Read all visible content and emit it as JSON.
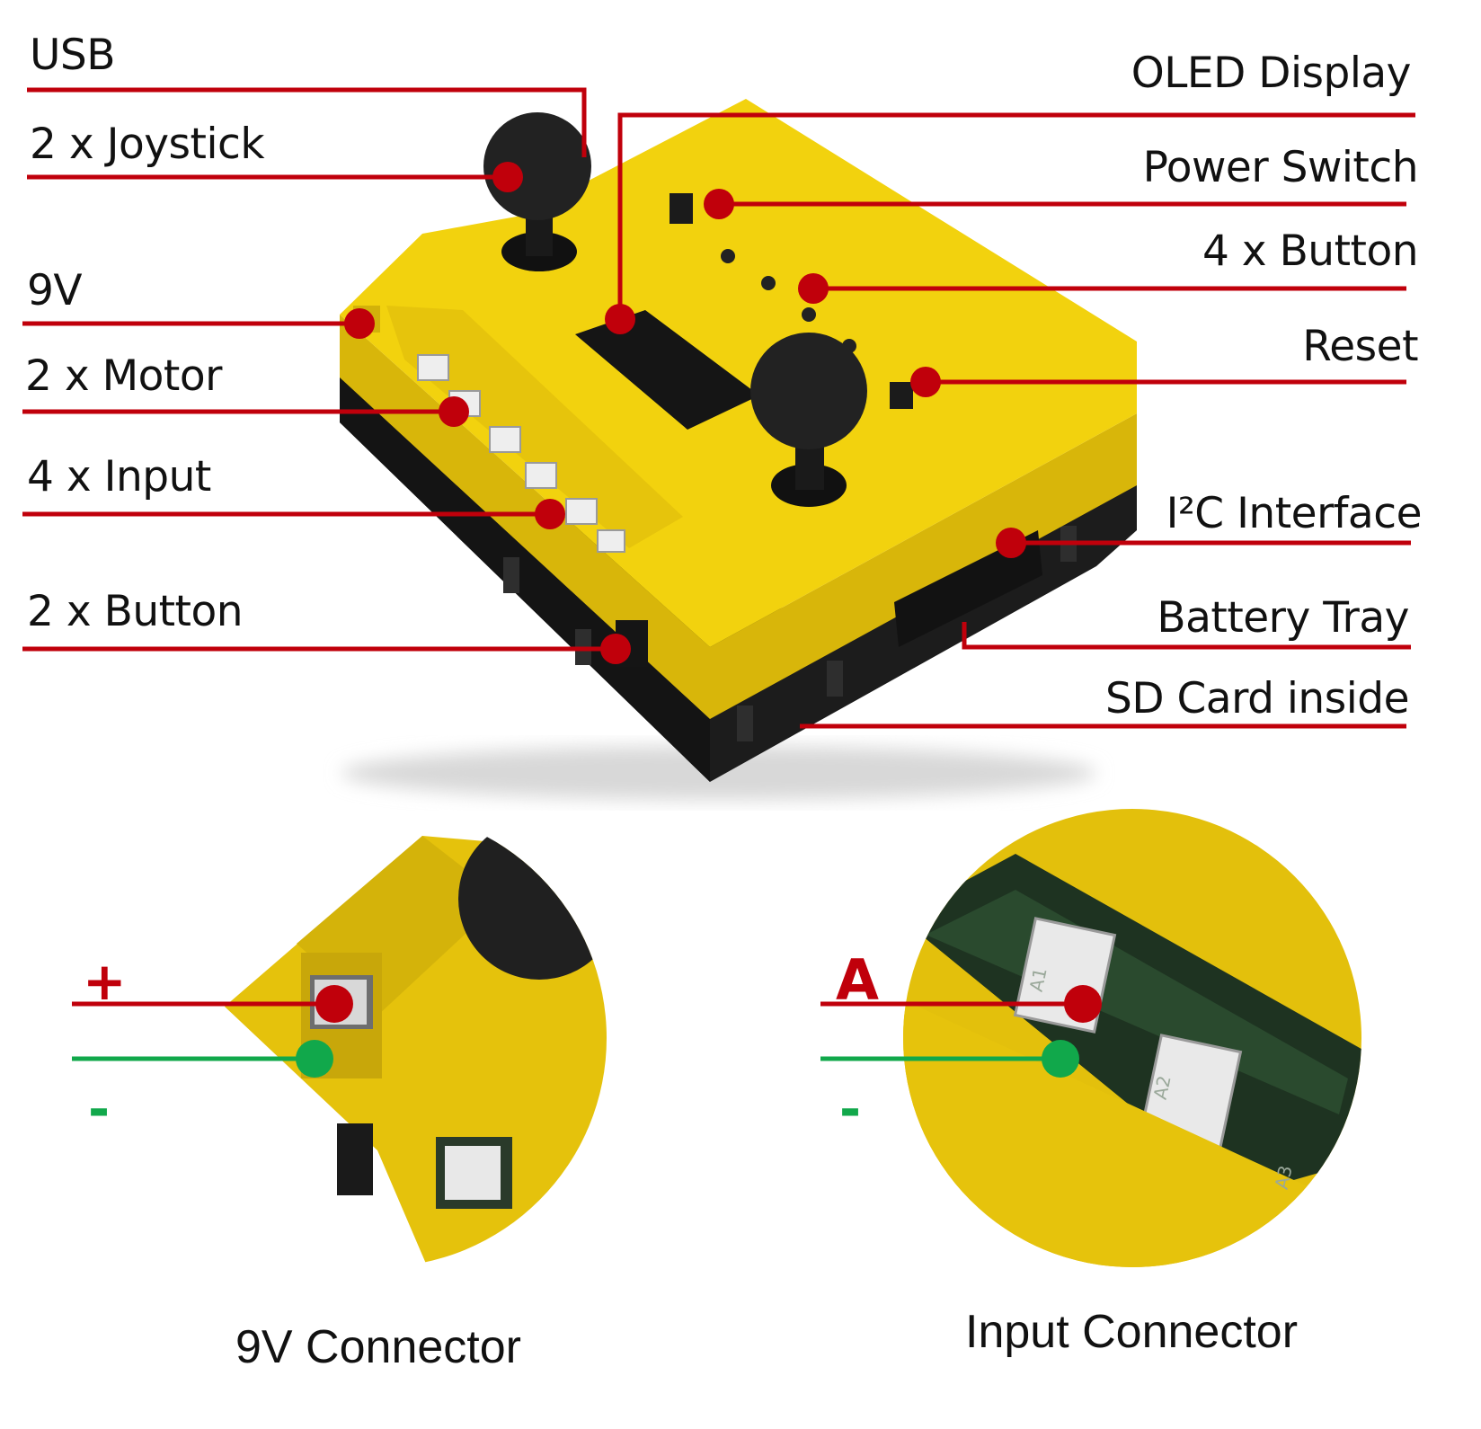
{
  "colors": {
    "callout": "#c0000b",
    "minus": "#11a84b",
    "case_yellow": "#f2d20e",
    "case_black": "#1c1c1c"
  },
  "labels": {
    "usb": "USB",
    "joystick": "2 x Joystick",
    "v9": "9V",
    "motor": "2 x Motor",
    "input": "4 x Input",
    "button2": "2 x Button",
    "oled": "OLED Display",
    "power": "Power Switch",
    "button4": "4 x Button",
    "reset": "Reset",
    "i2c": "I²C Interface",
    "battery": "Battery Tray",
    "sd": "SD Card inside"
  },
  "detail_9v": {
    "plus": "+",
    "minus": "-",
    "caption": "9V Connector"
  },
  "detail_input": {
    "a": "A",
    "minus": "-",
    "caption": "Input Connector",
    "port_labels": [
      "A1",
      "A2",
      "A3"
    ]
  }
}
